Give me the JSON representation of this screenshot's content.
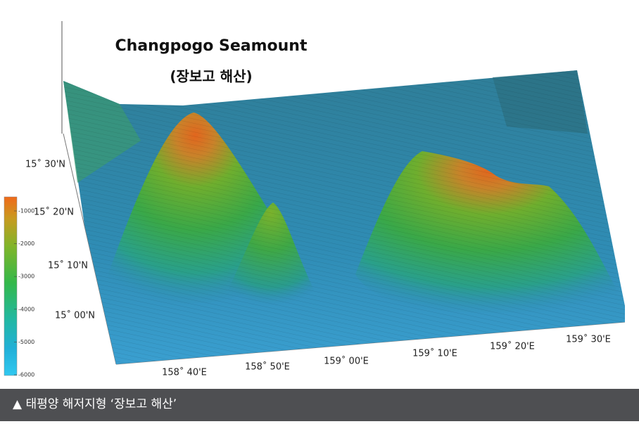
{
  "title": "Changpogo Seamount",
  "subtitle": "(장보고 해산)",
  "colorbar_labels": [
    -1000,
    -2000,
    -3000,
    -4000,
    -5000,
    -6000
  ],
  "latitude_labels": [
    "15˚ 30'N",
    "15˚ 20'N",
    "15˚ 10'N",
    "15˚ 00'N"
  ],
  "longitude_labels": [
    "158˚ 40'E",
    "158˚ 50'E",
    "159˚ 00'E",
    "159˚ 10'E",
    "159˚ 20'E",
    "159˚ 30'E"
  ],
  "caption": "▲ 태평양 해저지형 ‘장보고 해산’"
}
